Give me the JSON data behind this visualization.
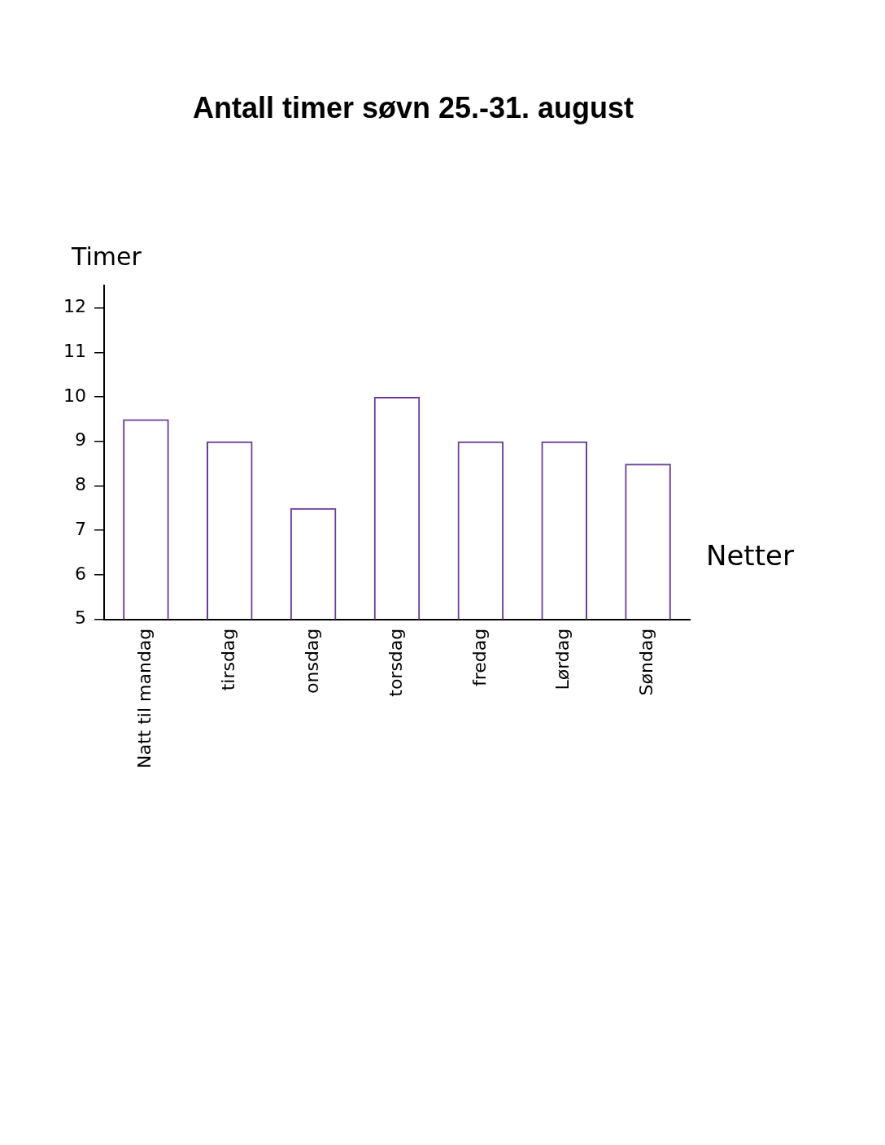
{
  "chart_data": {
    "type": "bar",
    "title": "Antall timer søvn 25.-31. august",
    "xlabel": "Netter",
    "ylabel": "Timer",
    "categories": [
      "Natt til mandag",
      "tirsdag",
      "onsdag",
      "torsdag",
      "fredag",
      "Lørdag",
      "Søndag"
    ],
    "values": [
      9.5,
      9,
      7.5,
      10,
      9,
      9,
      8.5
    ],
    "color": "#6a3d9a",
    "ylim": [
      5,
      12.5
    ],
    "yticks": [
      5,
      6,
      7,
      8,
      9,
      10,
      11,
      12
    ]
  }
}
